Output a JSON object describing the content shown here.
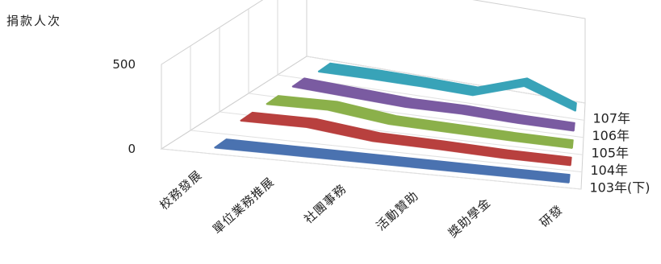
{
  "chart_data": {
    "type": "line",
    "title": "",
    "ylabel": "捐款人次",
    "xlabel": "",
    "ylim": [
      0,
      500
    ],
    "yticks": [
      "0",
      "500"
    ],
    "grid": true,
    "categories": [
      "校務發展",
      "單位業務推展",
      "社團事務",
      "活動贊助",
      "獎助學金",
      "研發"
    ],
    "series": [
      {
        "name": "103年(下)",
        "color": "#4a72b0",
        "values": [
          5,
          5,
          5,
          5,
          5,
          5
        ]
      },
      {
        "name": "104年",
        "color": "#b8403e",
        "values": [
          55,
          60,
          20,
          15,
          5,
          5
        ]
      },
      {
        "name": "105年",
        "color": "#8bb04a",
        "values": [
          45,
          55,
          15,
          10,
          5,
          5
        ]
      },
      {
        "name": "106年",
        "color": "#7a5ba1",
        "values": [
          40,
          25,
          10,
          15,
          5,
          5
        ]
      },
      {
        "name": "107年",
        "color": "#38a3b8",
        "values": [
          20,
          25,
          25,
          20,
          120,
          20
        ]
      }
    ]
  }
}
